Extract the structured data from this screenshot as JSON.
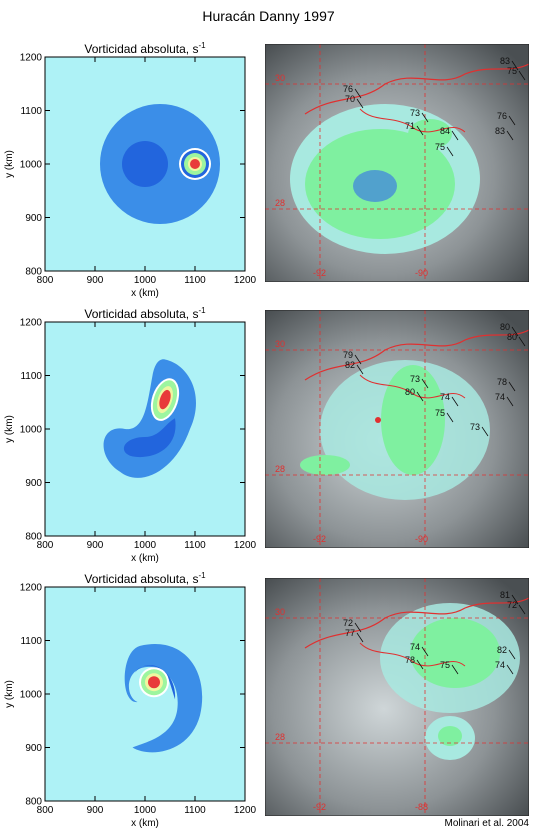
{
  "figure": {
    "title": "Huracán Danny 1997",
    "credit": "Molinari et al. 2004"
  },
  "colors": {
    "background": "#aef2f6",
    "outer": "#3b8ee8",
    "inner": "#2265dd",
    "core_outer": "#9df59f",
    "core_mid": "#eff6a0",
    "core_center": "#e83a3a",
    "sat_grid": "#e03030",
    "coast": "#e03030"
  },
  "vorticity_panels": [
    {
      "panel_title": "Vorticidad absoluta, s",
      "superscript": "-1",
      "xlabel": "x (km)",
      "ylabel": "y (km)",
      "x_ticks": [
        "800",
        "900",
        "1000",
        "1100",
        "1200"
      ],
      "y_ticks": [
        "800",
        "900",
        "1000",
        "1100",
        "1200"
      ],
      "xlim": [
        800,
        1200
      ],
      "ylim": [
        800,
        1200
      ]
    },
    {
      "panel_title": "Vorticidad absoluta, s",
      "superscript": "-1",
      "xlabel": "x (km)",
      "ylabel": "y (km)",
      "x_ticks": [
        "800",
        "900",
        "1000",
        "1100",
        "1200"
      ],
      "y_ticks": [
        "800",
        "900",
        "1000",
        "1100",
        "1200"
      ],
      "xlim": [
        800,
        1200
      ],
      "ylim": [
        800,
        1200
      ]
    },
    {
      "panel_title": "Vorticidad absoluta, s",
      "superscript": "-1",
      "xlabel": "x (km)",
      "ylabel": "y (km)",
      "x_ticks": [
        "800",
        "900",
        "1000",
        "1100",
        "1200"
      ],
      "y_ticks": [
        "800",
        "900",
        "1000",
        "1100",
        "1200"
      ],
      "xlim": [
        800,
        1200
      ],
      "ylim": [
        800,
        1200
      ]
    }
  ],
  "satellite_panels": [
    {
      "labels": {
        "lat_top": "30",
        "lat_bottom": "28",
        "lon_left": "-92",
        "lon_right": "-90",
        "readings": [
          "83",
          "75",
          "76",
          "70",
          "73",
          "71",
          "84",
          "76",
          "83",
          "75"
        ]
      }
    },
    {
      "labels": {
        "lat_top": "30",
        "lat_bottom": "28",
        "lon_left": "-92",
        "lon_right": "-90",
        "readings": [
          "80",
          "80",
          "79",
          "82",
          "73",
          "80",
          "74",
          "78",
          "74",
          "75",
          "73"
        ]
      }
    },
    {
      "labels": {
        "lat_top": "30",
        "lat_bottom": "28",
        "lon_left": "-92",
        "lon_right": "-88",
        "readings": [
          "81",
          "72",
          "72",
          "77",
          "74",
          "78",
          "75",
          "82",
          "74"
        ]
      }
    }
  ]
}
